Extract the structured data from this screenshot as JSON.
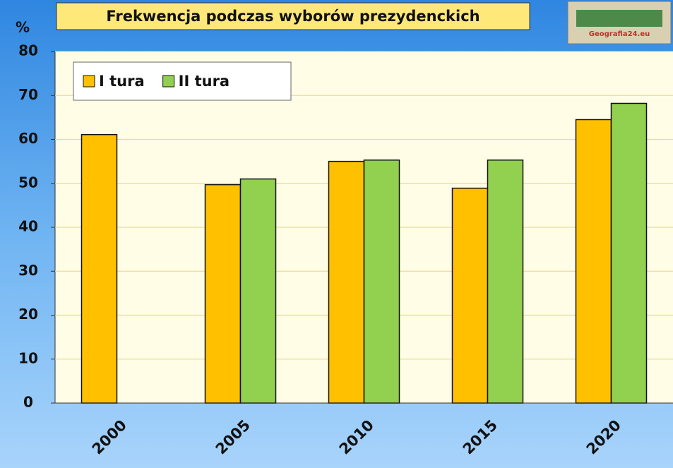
{
  "chart_data": {
    "type": "bar",
    "title": "Frekwencja podczas wyborów prezydenckich",
    "y_label": "%",
    "source": "Geografia24.eu",
    "categories": [
      "2000",
      "2005",
      "2010",
      "2015",
      "2020"
    ],
    "series": [
      {
        "name": "I tura",
        "color": "#ffc000",
        "values": [
          61.1,
          49.7,
          55.0,
          48.9,
          64.5
        ]
      },
      {
        "name": "II tura",
        "color": "#92d050",
        "values": [
          null,
          51.0,
          55.3,
          55.3,
          68.2
        ]
      }
    ],
    "ylim": [
      0,
      80
    ],
    "yticks": [
      0,
      10,
      20,
      30,
      40,
      50,
      60,
      70,
      80
    ],
    "grid": true,
    "legend": "upper left"
  }
}
